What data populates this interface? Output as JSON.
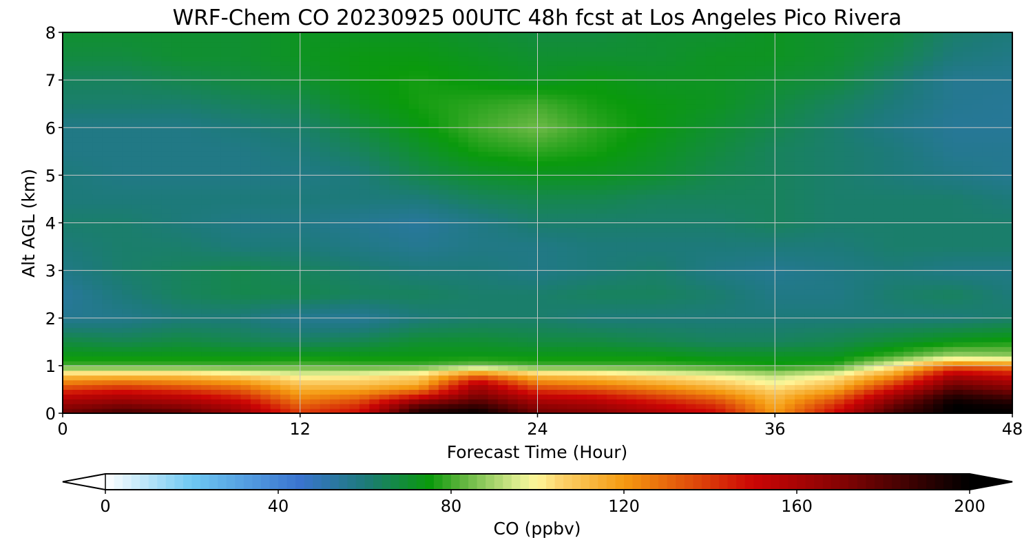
{
  "chart_data": {
    "type": "heatmap",
    "title": "WRF-Chem CO  20230925 00UTC 48h fcst at Los Angeles Pico Rivera",
    "xlabel": "Forecast Time (Hour)",
    "ylabel": "Alt AGL (km)",
    "xlim": [
      0,
      48
    ],
    "ylim": [
      0,
      8
    ],
    "xticks": [
      0,
      12,
      24,
      36,
      48
    ],
    "yticks": [
      0,
      1,
      2,
      3,
      4,
      5,
      6,
      7,
      8
    ],
    "grid": true,
    "x_hours": [
      0,
      3,
      6,
      9,
      12,
      15,
      18,
      21,
      24,
      27,
      30,
      33,
      36,
      39,
      42,
      45,
      48
    ],
    "z_km": [
      0,
      0.2,
      0.4,
      0.6,
      0.8,
      1.0,
      1.2,
      1.5,
      2.0,
      2.5,
      3.0,
      3.5,
      4.0,
      4.5,
      5.0,
      5.5,
      6.0,
      6.5,
      7.0,
      7.5,
      8.0
    ],
    "co_ppbv": [
      [
        175,
        185,
        180,
        165,
        140,
        150,
        195,
        200,
        175,
        170,
        160,
        150,
        120,
        150,
        185,
        200,
        200
      ],
      [
        165,
        170,
        165,
        155,
        130,
        140,
        175,
        185,
        165,
        160,
        150,
        140,
        115,
        140,
        175,
        200,
        195
      ],
      [
        150,
        155,
        150,
        140,
        120,
        125,
        140,
        170,
        150,
        145,
        135,
        125,
        110,
        125,
        160,
        190,
        180
      ],
      [
        130,
        135,
        130,
        125,
        110,
        110,
        115,
        160,
        130,
        125,
        118,
        110,
        100,
        110,
        140,
        175,
        165
      ],
      [
        110,
        110,
        110,
        105,
        98,
        100,
        105,
        130,
        110,
        108,
        102,
        98,
        92,
        100,
        120,
        160,
        150
      ],
      [
        80,
        80,
        80,
        80,
        82,
        80,
        80,
        85,
        80,
        80,
        80,
        78,
        76,
        78,
        100,
        130,
        125
      ],
      [
        74,
        74,
        74,
        74,
        74,
        74,
        74,
        74,
        74,
        74,
        74,
        72,
        72,
        72,
        80,
        90,
        88
      ],
      [
        68,
        66,
        68,
        66,
        64,
        66,
        70,
        70,
        68,
        68,
        66,
        64,
        64,
        66,
        70,
        74,
        76
      ],
      [
        56,
        57,
        60,
        60,
        56,
        55,
        60,
        62,
        62,
        60,
        60,
        60,
        60,
        60,
        60,
        60,
        62
      ],
      [
        54,
        60,
        64,
        66,
        66,
        64,
        64,
        62,
        62,
        64,
        64,
        62,
        58,
        58,
        62,
        64,
        60
      ],
      [
        58,
        62,
        64,
        66,
        64,
        62,
        60,
        60,
        58,
        60,
        62,
        58,
        56,
        58,
        60,
        58,
        58
      ],
      [
        60,
        62,
        62,
        60,
        60,
        58,
        56,
        58,
        58,
        60,
        60,
        60,
        60,
        60,
        62,
        62,
        62
      ],
      [
        62,
        62,
        60,
        58,
        58,
        56,
        54,
        58,
        62,
        62,
        62,
        62,
        64,
        62,
        62,
        62,
        62
      ],
      [
        60,
        60,
        60,
        60,
        60,
        60,
        60,
        64,
        66,
        66,
        64,
        64,
        64,
        62,
        62,
        62,
        60
      ],
      [
        60,
        58,
        58,
        58,
        58,
        60,
        66,
        70,
        72,
        72,
        70,
        66,
        64,
        62,
        60,
        58,
        56
      ],
      [
        58,
        58,
        58,
        58,
        60,
        64,
        70,
        76,
        78,
        76,
        72,
        68,
        64,
        62,
        60,
        56,
        56
      ],
      [
        58,
        58,
        58,
        60,
        62,
        68,
        74,
        80,
        84,
        78,
        74,
        70,
        66,
        62,
        58,
        55,
        55
      ],
      [
        62,
        62,
        62,
        64,
        66,
        72,
        76,
        78,
        80,
        76,
        74,
        72,
        68,
        64,
        60,
        56,
        55
      ],
      [
        64,
        64,
        66,
        68,
        70,
        74,
        76,
        74,
        72,
        74,
        72,
        72,
        70,
        68,
        62,
        56,
        56
      ],
      [
        68,
        68,
        70,
        70,
        72,
        74,
        74,
        72,
        70,
        70,
        70,
        72,
        72,
        70,
        66,
        60,
        58
      ],
      [
        70,
        70,
        70,
        70,
        72,
        72,
        72,
        70,
        68,
        68,
        70,
        70,
        72,
        70,
        68,
        62,
        60
      ]
    ]
  },
  "colorbar": {
    "label": "CO  (ppbv)",
    "ticks": [
      0,
      40,
      80,
      120,
      160,
      200
    ],
    "min": 0,
    "max": 200,
    "extend": "both",
    "colormap_stops": [
      {
        "value": 0,
        "color": "#ffffff"
      },
      {
        "value": 20,
        "color": "#6ec8f2"
      },
      {
        "value": 45,
        "color": "#3a74cf"
      },
      {
        "value": 60,
        "color": "#1d7a7a"
      },
      {
        "value": 75,
        "color": "#0a9a0c"
      },
      {
        "value": 82,
        "color": "#59b23a"
      },
      {
        "value": 96,
        "color": "#e2ef93"
      },
      {
        "value": 100,
        "color": "#fff698"
      },
      {
        "value": 105,
        "color": "#fcd46e"
      },
      {
        "value": 120,
        "color": "#f59a10"
      },
      {
        "value": 150,
        "color": "#cc0505"
      },
      {
        "value": 170,
        "color": "#850303"
      },
      {
        "value": 200,
        "color": "#000000"
      }
    ],
    "under_color": "#ffffff",
    "over_color": "#000000"
  }
}
